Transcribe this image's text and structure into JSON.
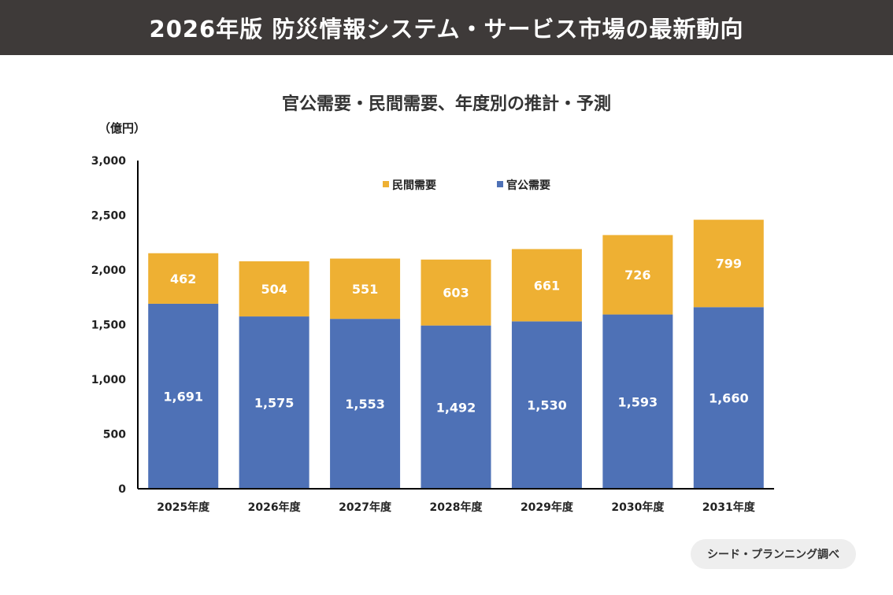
{
  "header": {
    "title": "2026年版 防災情報システム・サービス市場の最新動向"
  },
  "source": "シード・プランニング調べ",
  "colors": {
    "public": "#4e71b6",
    "private": "#eeb033",
    "header_bg": "#3e3a39"
  },
  "chart_data": {
    "type": "bar",
    "stacked": true,
    "title": "官公需要・民間需要、年度別の推計・予測",
    "ylabel": "（億円）",
    "ylim": [
      0,
      3000
    ],
    "yticks": [
      0,
      500,
      1000,
      1500,
      2000,
      2500,
      3000
    ],
    "ytick_labels": [
      "0",
      "500",
      "1,000",
      "1,500",
      "2,000",
      "2,500",
      "3,000"
    ],
    "legend_position": "top",
    "categories": [
      "2025年度",
      "2026年度",
      "2027年度",
      "2028年度",
      "2029年度",
      "2030年度",
      "2031年度"
    ],
    "series": [
      {
        "name": "官公需要",
        "color": "#4e71b6",
        "values": [
          1691,
          1575,
          1553,
          1492,
          1530,
          1593,
          1660
        ],
        "labels": [
          "1,691",
          "1,575",
          "1,553",
          "1,492",
          "1,530",
          "1,593",
          "1,660"
        ]
      },
      {
        "name": "民間需要",
        "color": "#eeb033",
        "values": [
          462,
          504,
          551,
          603,
          661,
          726,
          799
        ],
        "labels": [
          "462",
          "504",
          "551",
          "603",
          "661",
          "726",
          "799"
        ]
      }
    ],
    "legend_order": [
      "民間需要",
      "官公需要"
    ]
  }
}
